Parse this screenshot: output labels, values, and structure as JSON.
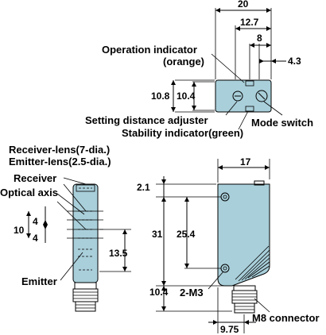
{
  "top_view": {
    "dims": {
      "width": "20",
      "d12_7": "12.7",
      "d8": "8",
      "d4_3": "4.3",
      "d10_8": "10.8",
      "d10_4": "10.4"
    },
    "labels": {
      "operation_indicator": "Operation indicator",
      "orange": "(orange)",
      "setting_distance_adjuster": "Setting distance adjuster",
      "mode_switch": "Mode switch",
      "stability_indicator": "Stability indicator(green)"
    }
  },
  "front_view": {
    "labels": {
      "receiver_lens": "Receiver-lens(7-dia.)",
      "emitter_lens": "Emitter-lens(2.5-dia.)",
      "receiver": "Receiver",
      "optical_axis": "Optical axis",
      "emitter": "Emitter"
    },
    "dims": {
      "d10": "10",
      "d4a": "4",
      "d4b": "4",
      "d13_5": "13.5"
    }
  },
  "side_view": {
    "dims": {
      "d17": "17",
      "d2_1": "2.1",
      "d31": "31",
      "d25_4": "25.4",
      "d10_4": "10.4",
      "d9_75": "9.75"
    },
    "labels": {
      "m3": "2-M3",
      "connector": "M8 connector"
    }
  },
  "colors": {
    "body": "#a9cfda",
    "connector": "#ffffff",
    "stroke": "#000000"
  }
}
